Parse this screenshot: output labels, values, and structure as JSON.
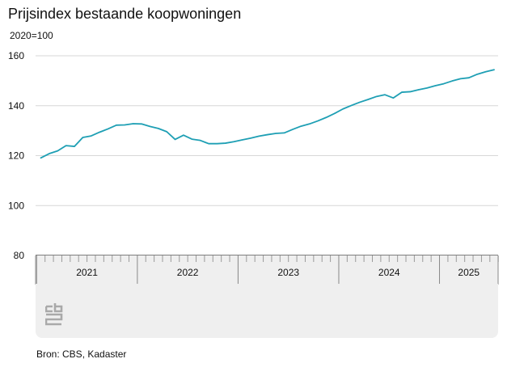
{
  "title": "Prijsindex bestaande koopwoningen",
  "unit_label": "2020=100",
  "source": "Bron: CBS, Kadaster",
  "logo_name": "cbs-logo-icon",
  "colors": {
    "line": "#1e9fb4",
    "grid": "#d7d7d7",
    "axis": "#333333",
    "axis_band": "#efefef",
    "text": "#111111"
  },
  "chart_data": {
    "type": "line",
    "title": "Prijsindex bestaande koopwoningen",
    "ylabel": "2020=100",
    "ylim": [
      80,
      160
    ],
    "yticks": [
      80,
      100,
      120,
      140,
      160
    ],
    "grid": true,
    "year_labels": [
      "2021",
      "2022",
      "2023",
      "2024",
      "2025"
    ],
    "x_start": "2021-01",
    "x_end": "2025-07",
    "series": [
      {
        "values": [
          119.1,
          120.8,
          121.9,
          124.0,
          123.7,
          127.3,
          127.9,
          129.4,
          130.7,
          132.2,
          132.3,
          132.8,
          132.7,
          131.7,
          130.9,
          129.6,
          126.5,
          128.2,
          126.6,
          126.1,
          124.8,
          124.8,
          125.0,
          125.6,
          126.3,
          127.0,
          127.8,
          128.4,
          128.9,
          129.1,
          130.5,
          131.8,
          132.7,
          133.9,
          135.3,
          136.9,
          138.7,
          140.1,
          141.4,
          142.5,
          143.7,
          144.4,
          143.1,
          145.4,
          145.6,
          146.4,
          147.1,
          148.0,
          148.8,
          149.9,
          150.8,
          151.2,
          152.6,
          153.6,
          154.4
        ]
      }
    ]
  }
}
